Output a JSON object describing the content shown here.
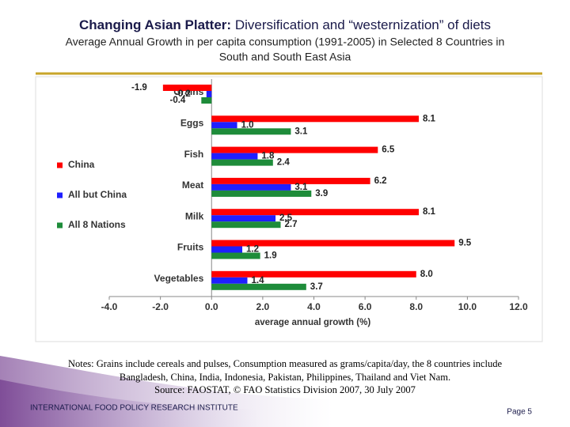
{
  "title": {
    "bold": "Changing Asian Platter:",
    "rest": "Diversification and “westernization” of diets"
  },
  "subtitle": [
    "Average Annual Growth in per capita consumption (1991-2005) in Selected 8 Countries in",
    "South and South East Asia"
  ],
  "chart_data": {
    "type": "hbar",
    "categories": [
      "Grains",
      "Eggs",
      "Fish",
      "Meat",
      "Milk",
      "Fruits",
      "Vegetables"
    ],
    "series": [
      {
        "name": "China",
        "color": "#ff0000",
        "values": [
          -1.9,
          8.1,
          6.5,
          6.2,
          8.1,
          9.5,
          8.0
        ],
        "value_labels": [
          "-1.9",
          "8.1",
          "6.5",
          "6.2",
          "8.1",
          "9.5",
          "8.0"
        ]
      },
      {
        "name": "All but China",
        "color": "#1f1fff",
        "values": [
          -0.2,
          1.0,
          1.8,
          3.1,
          2.5,
          1.2,
          1.4
        ],
        "value_labels": [
          "-0.2",
          "1.0",
          "1.8",
          "3.1",
          "2.5",
          "1.2",
          "1.4"
        ]
      },
      {
        "name": "All 8 Nations",
        "color": "#1e8c3a",
        "values": [
          -0.4,
          3.1,
          2.4,
          3.9,
          2.7,
          1.9,
          3.7
        ],
        "value_labels": [
          "-0.4",
          "3.1",
          "2.4",
          "3.9",
          "2.7",
          "1.9",
          "3.7"
        ]
      }
    ],
    "xlabel": "average annual growth (%)",
    "xlim": [
      -4,
      12
    ],
    "xticks": [
      {
        "value": -4,
        "label": "-4.0"
      },
      {
        "value": -2,
        "label": "-2.0"
      },
      {
        "value": 0,
        "label": "0.0"
      },
      {
        "value": 2,
        "label": "2.0"
      },
      {
        "value": 4,
        "label": "4.0"
      },
      {
        "value": 6,
        "label": "6.0"
      },
      {
        "value": 8,
        "label": "8.0"
      },
      {
        "value": 10,
        "label": "10.0"
      },
      {
        "value": 12,
        "label": "12.0"
      }
    ],
    "legend": "left"
  },
  "notes": [
    "Notes: Grains include cereals and pulses, Consumption measured as grams/capita/day, the 8 countries include",
    "Bangladesh, China, India, Indonesia, Pakistan, Philippines, Thailand and Viet Nam.",
    "Source: FAOSTAT, © FAO Statistics Division 2007,  30 July 2007"
  ],
  "footer": {
    "institute": "INTERNATIONAL FOOD POLICY RESEARCH INSTITUTE",
    "page": "Page 5"
  }
}
